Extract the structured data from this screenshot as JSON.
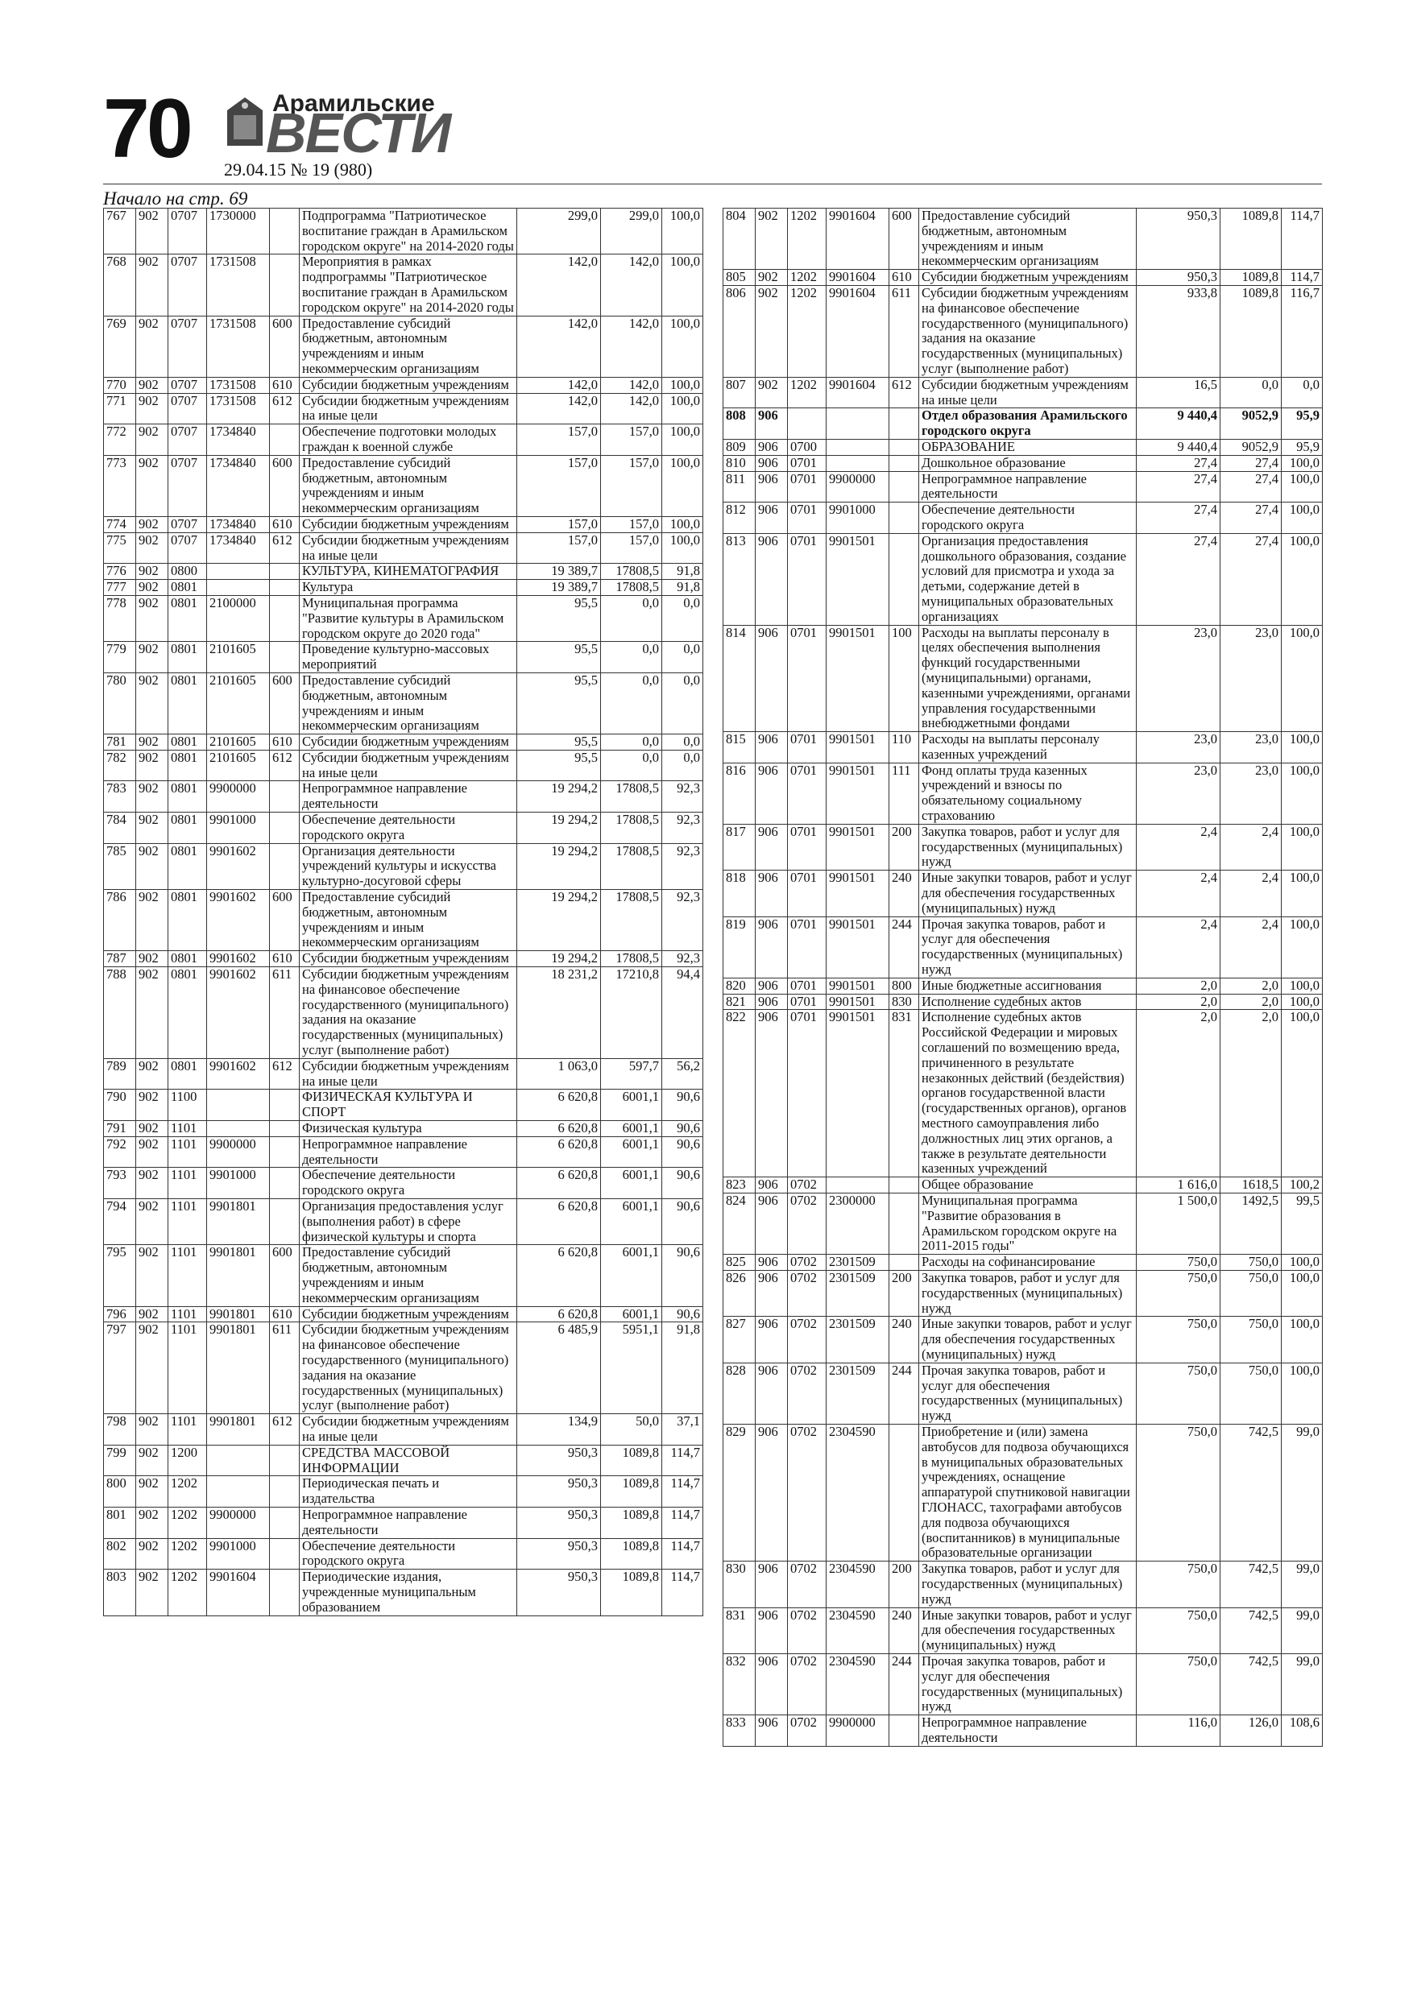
{
  "header": {
    "page_number": "70",
    "logo_top": "Арамильские",
    "logo_main": "ВЕСТИ",
    "issue": "29.04.15 № 19 (980)"
  },
  "continued": "Начало на стр. 69",
  "left_table": {
    "rows": [
      [
        "767",
        "902",
        "0707",
        "1730000",
        null,
        "Подпрограмма \"Патриотическое воспитание граждан в Арамильском городском округе\" на 2014-2020 годы",
        "299,0",
        "299,0",
        "100,0"
      ],
      [
        "768",
        "902",
        "0707",
        "1731508",
        null,
        "Мероприятия в рамках подпрограммы \"Патриотическое воспитание граждан в Арамильском городском округе\" на 2014-2020 годы",
        "142,0",
        "142,0",
        "100,0"
      ],
      [
        "769",
        "902",
        "0707",
        "1731508",
        "600",
        "Предоставление субсидий бюджетным, автономным учреждениям и иным некоммерческим организациям",
        "142,0",
        "142,0",
        "100,0"
      ],
      [
        "770",
        "902",
        "0707",
        "1731508",
        "610",
        "Субсидии бюджетным учреждениям",
        "142,0",
        "142,0",
        "100,0"
      ],
      [
        "771",
        "902",
        "0707",
        "1731508",
        "612",
        "Субсидии бюджетным учреждениям на иные цели",
        "142,0",
        "142,0",
        "100,0"
      ],
      [
        "772",
        "902",
        "0707",
        "1734840",
        null,
        "Обеспечение подготовки молодых граждан к военной службе",
        "157,0",
        "157,0",
        "100,0"
      ],
      [
        "773",
        "902",
        "0707",
        "1734840",
        "600",
        "Предоставление субсидий бюджетным, автономным учреждениям и иным некоммерческим организациям",
        "157,0",
        "157,0",
        "100,0"
      ],
      [
        "774",
        "902",
        "0707",
        "1734840",
        "610",
        "Субсидии бюджетным учреждениям",
        "157,0",
        "157,0",
        "100,0"
      ],
      [
        "775",
        "902",
        "0707",
        "1734840",
        "612",
        "Субсидии бюджетным учреждениям на иные цели",
        "157,0",
        "157,0",
        "100,0"
      ],
      [
        "776",
        "902",
        "0800",
        null,
        null,
        "КУЛЬТУРА, КИНЕМАТОГРАФИЯ",
        "19 389,7",
        "17808,5",
        "91,8"
      ],
      [
        "777",
        "902",
        "0801",
        null,
        null,
        "Культура",
        "19 389,7",
        "17808,5",
        "91,8"
      ],
      [
        "778",
        "902",
        "0801",
        "2100000",
        null,
        "Муниципальная программа \"Развитие культуры в Арамильском городском округе до 2020 года\"",
        "95,5",
        "0,0",
        "0,0"
      ],
      [
        "779",
        "902",
        "0801",
        "2101605",
        null,
        "Проведение культурно-массовых мероприятий",
        "95,5",
        "0,0",
        "0,0"
      ],
      [
        "780",
        "902",
        "0801",
        "2101605",
        "600",
        "Предоставление субсидий бюджетным, автономным учреждениям и иным некоммерческим организациям",
        "95,5",
        "0,0",
        "0,0"
      ],
      [
        "781",
        "902",
        "0801",
        "2101605",
        "610",
        "Субсидии бюджетным учреждениям",
        "95,5",
        "0,0",
        "0,0"
      ],
      [
        "782",
        "902",
        "0801",
        "2101605",
        "612",
        "Субсидии бюджетным учреждениям на иные цели",
        "95,5",
        "0,0",
        "0,0"
      ],
      [
        "783",
        "902",
        "0801",
        "9900000",
        null,
        "Непрограммное направление деятельности",
        "19 294,2",
        "17808,5",
        "92,3"
      ],
      [
        "784",
        "902",
        "0801",
        "9901000",
        null,
        "Обеспечение деятельности городского округа",
        "19 294,2",
        "17808,5",
        "92,3"
      ],
      [
        "785",
        "902",
        "0801",
        "9901602",
        null,
        "Организация деятельности учреждений культуры и искусства культурно-досуговой сферы",
        "19 294,2",
        "17808,5",
        "92,3"
      ],
      [
        "786",
        "902",
        "0801",
        "9901602",
        "600",
        "Предоставление субсидий бюджетным, автономным учреждениям и иным некоммерческим организациям",
        "19 294,2",
        "17808,5",
        "92,3"
      ],
      [
        "787",
        "902",
        "0801",
        "9901602",
        "610",
        "Субсидии бюджетным учреждениям",
        "19 294,2",
        "17808,5",
        "92,3"
      ],
      [
        "788",
        "902",
        "0801",
        "9901602",
        "611",
        "Субсидии бюджетным учреждениям на финансовое обеспечение государственного (муниципального) задания на оказание государственных (муниципальных) услуг (выполнение работ)",
        "18 231,2",
        "17210,8",
        "94,4"
      ],
      [
        "789",
        "902",
        "0801",
        "9901602",
        "612",
        "Субсидии бюджетным учреждениям на иные цели",
        "1 063,0",
        "597,7",
        "56,2"
      ],
      [
        "790",
        "902",
        "1100",
        null,
        null,
        "ФИЗИЧЕСКАЯ КУЛЬТУРА И СПОРТ",
        "6 620,8",
        "6001,1",
        "90,6"
      ],
      [
        "791",
        "902",
        "1101",
        null,
        null,
        "Физическая культура",
        "6 620,8",
        "6001,1",
        "90,6"
      ],
      [
        "792",
        "902",
        "1101",
        "9900000",
        null,
        "Непрограммное направление деятельности",
        "6 620,8",
        "6001,1",
        "90,6"
      ],
      [
        "793",
        "902",
        "1101",
        "9901000",
        null,
        "Обеспечение деятельности городского округа",
        "6 620,8",
        "6001,1",
        "90,6"
      ],
      [
        "794",
        "902",
        "1101",
        "9901801",
        null,
        "Организация предоставления услуг (выполнения работ) в сфере физической культуры и спорта",
        "6 620,8",
        "6001,1",
        "90,6"
      ],
      [
        "795",
        "902",
        "1101",
        "9901801",
        "600",
        "Предоставление субсидий бюджетным, автономным учреждениям и иным некоммерческим организациям",
        "6 620,8",
        "6001,1",
        "90,6"
      ],
      [
        "796",
        "902",
        "1101",
        "9901801",
        "610",
        "Субсидии бюджетным учреждениям",
        "6 620,8",
        "6001,1",
        "90,6"
      ],
      [
        "797",
        "902",
        "1101",
        "9901801",
        "611",
        "Субсидии бюджетным учреждениям на финансовое обеспечение государственного (муниципального) задания на оказание государственных (муниципальных) услуг (выполнение работ)",
        "6 485,9",
        "5951,1",
        "91,8"
      ],
      [
        "798",
        "902",
        "1101",
        "9901801",
        "612",
        "Субсидии бюджетным учреждениям на иные цели",
        "134,9",
        "50,0",
        "37,1"
      ],
      [
        "799",
        "902",
        "1200",
        null,
        null,
        "СРЕДСТВА МАССОВОЙ ИНФОРМАЦИИ",
        "950,3",
        "1089,8",
        "114,7"
      ],
      [
        "800",
        "902",
        "1202",
        null,
        null,
        "Периодическая печать и издательства",
        "950,3",
        "1089,8",
        "114,7"
      ],
      [
        "801",
        "902",
        "1202",
        "9900000",
        null,
        "Непрограммное направление деятельности",
        "950,3",
        "1089,8",
        "114,7"
      ],
      [
        "802",
        "902",
        "1202",
        "9901000",
        null,
        "Обеспечение деятельности городского округа",
        "950,3",
        "1089,8",
        "114,7"
      ],
      [
        "803",
        "902",
        "1202",
        "9901604",
        null,
        "Периодические издания, учрежденные муниципальным образованием",
        "950,3",
        "1089,8",
        "114,7"
      ]
    ]
  },
  "right_table": {
    "rows": [
      [
        "804",
        "902",
        "1202",
        "9901604",
        "600",
        "Предоставление субсидий бюджетным, автономным учреждениям и иным некоммерческим организациям",
        "950,3",
        "1089,8",
        "114,7"
      ],
      [
        "805",
        "902",
        "1202",
        "9901604",
        "610",
        "Субсидии бюджетным учреждениям",
        "950,3",
        "1089,8",
        "114,7"
      ],
      [
        "806",
        "902",
        "1202",
        "9901604",
        "611",
        "Субсидии бюджетным учреждениям на финансовое обеспечение государственного (муниципального) задания на оказание государственных (муниципальных) услуг (выполнение работ)",
        "933,8",
        "1089,8",
        "116,7"
      ],
      [
        "807",
        "902",
        "1202",
        "9901604",
        "612",
        "Субсидии бюджетным учреждениям на иные цели",
        "16,5",
        "0,0",
        "0,0"
      ],
      [
        "808",
        "906",
        null,
        null,
        null,
        "Отдел образования Арамильского городского округа",
        "9 440,4",
        "9052,9",
        "95,9"
      ],
      [
        "809",
        "906",
        "0700",
        null,
        null,
        "ОБРАЗОВАНИЕ",
        "9 440,4",
        "9052,9",
        "95,9"
      ],
      [
        "810",
        "906",
        "0701",
        null,
        null,
        "Дошкольное образование",
        "27,4",
        "27,4",
        "100,0"
      ],
      [
        "811",
        "906",
        "0701",
        "9900000",
        null,
        "Непрограммное направление деятельности",
        "27,4",
        "27,4",
        "100,0"
      ],
      [
        "812",
        "906",
        "0701",
        "9901000",
        null,
        "Обеспечение деятельности городского округа",
        "27,4",
        "27,4",
        "100,0"
      ],
      [
        "813",
        "906",
        "0701",
        "9901501",
        null,
        "Организация предоставления дошкольного образования, создание условий для присмотра и ухода за детьми, содержание детей в муниципальных образовательных организациях",
        "27,4",
        "27,4",
        "100,0"
      ],
      [
        "814",
        "906",
        "0701",
        "9901501",
        "100",
        "Расходы на выплаты персоналу в целях обеспечения выполнения функций государственными (муниципальными) органами, казенными учреждениями, органами управления государственными внебюджетными фондами",
        "23,0",
        "23,0",
        "100,0"
      ],
      [
        "815",
        "906",
        "0701",
        "9901501",
        "110",
        "Расходы на выплаты персоналу казенных учреждений",
        "23,0",
        "23,0",
        "100,0"
      ],
      [
        "816",
        "906",
        "0701",
        "9901501",
        "111",
        "Фонд оплаты труда казенных учреждений и взносы по обязательному социальному страхованию",
        "23,0",
        "23,0",
        "100,0"
      ],
      [
        "817",
        "906",
        "0701",
        "9901501",
        "200",
        "Закупка товаров, работ и услуг для государственных (муниципальных) нужд",
        "2,4",
        "2,4",
        "100,0"
      ],
      [
        "818",
        "906",
        "0701",
        "9901501",
        "240",
        "Иные закупки товаров, работ и услуг для обеспечения государственных (муниципальных) нужд",
        "2,4",
        "2,4",
        "100,0"
      ],
      [
        "819",
        "906",
        "0701",
        "9901501",
        "244",
        "Прочая закупка товаров, работ и услуг для обеспечения государственных (муниципальных) нужд",
        "2,4",
        "2,4",
        "100,0"
      ],
      [
        "820",
        "906",
        "0701",
        "9901501",
        "800",
        "Иные бюджетные ассигнования",
        "2,0",
        "2,0",
        "100,0"
      ],
      [
        "821",
        "906",
        "0701",
        "9901501",
        "830",
        "Исполнение судебных актов",
        "2,0",
        "2,0",
        "100,0"
      ],
      [
        "822",
        "906",
        "0701",
        "9901501",
        "831",
        "Исполнение судебных актов Российской Федерации и мировых соглашений по возмещению вреда, причиненного в результате незаконных действий (бездействия) органов государственной власти (государственных органов), органов местного самоуправления либо должностных лиц этих органов, а также в результате деятельности казенных учреждений",
        "2,0",
        "2,0",
        "100,0"
      ],
      [
        "823",
        "906",
        "0702",
        null,
        null,
        "Общее образование",
        "1 616,0",
        "1618,5",
        "100,2"
      ],
      [
        "824",
        "906",
        "0702",
        "2300000",
        null,
        "Муниципальная программа \"Развитие образования в Арамильском городском округе на 2011-2015 годы\"",
        "1 500,0",
        "1492,5",
        "99,5"
      ],
      [
        "825",
        "906",
        "0702",
        "2301509",
        null,
        "Расходы на софинансирование",
        "750,0",
        "750,0",
        "100,0"
      ],
      [
        "826",
        "906",
        "0702",
        "2301509",
        "200",
        "Закупка товаров, работ и услуг для государственных (муниципальных) нужд",
        "750,0",
        "750,0",
        "100,0"
      ],
      [
        "827",
        "906",
        "0702",
        "2301509",
        "240",
        "Иные закупки товаров, работ и услуг для обеспечения государственных (муниципальных) нужд",
        "750,0",
        "750,0",
        "100,0"
      ],
      [
        "828",
        "906",
        "0702",
        "2301509",
        "244",
        "Прочая закупка товаров, работ и услуг для обеспечения государственных (муниципальных) нужд",
        "750,0",
        "750,0",
        "100,0"
      ],
      [
        "829",
        "906",
        "0702",
        "2304590",
        null,
        "Приобретение и (или) замена автобусов для подвоза обучающихся в муниципальных образовательных учреждениях, оснащение аппаратурой спутниковой навигации ГЛОНАСС, тахографами автобусов для подвоза обучающихся (воспитанников) в муниципальные образовательные организации",
        "750,0",
        "742,5",
        "99,0"
      ],
      [
        "830",
        "906",
        "0702",
        "2304590",
        "200",
        "Закупка товаров, работ и услуг для государственных (муниципальных) нужд",
        "750,0",
        "742,5",
        "99,0"
      ],
      [
        "831",
        "906",
        "0702",
        "2304590",
        "240",
        "Иные закупки товаров, работ и услуг для обеспечения государственных (муниципальных) нужд",
        "750,0",
        "742,5",
        "99,0"
      ],
      [
        "832",
        "906",
        "0702",
        "2304590",
        "244",
        "Прочая закупка товаров, работ и услуг для обеспечения государственных (муниципальных) нужд",
        "750,0",
        "742,5",
        "99,0"
      ],
      [
        "833",
        "906",
        "0702",
        "9900000",
        null,
        "Непрограммное направление деятельности",
        "116,0",
        "126,0",
        "108,6"
      ]
    ]
  }
}
